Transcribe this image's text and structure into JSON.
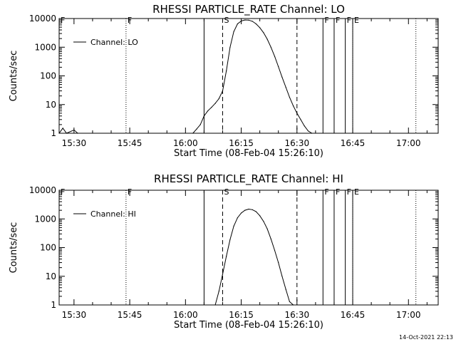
{
  "footer": {
    "timestamp": "14-Oct-2021 22:13"
  },
  "chart_data": [
    {
      "type": "line",
      "title": "RHESSI PARTICLE_RATE Channel: LO",
      "xlabel": "Start Time (08-Feb-04 15:26:10)",
      "ylabel": "Counts/sec",
      "yscale": "log",
      "xlim": [
        "15:26",
        "17:08"
      ],
      "ylim": [
        1,
        10000
      ],
      "xticks": [
        "15:30",
        "15:45",
        "16:00",
        "16:15",
        "16:30",
        "16:45",
        "17:00"
      ],
      "yticks": [
        "1",
        "10",
        "100",
        "1000",
        "10000"
      ],
      "legend": {
        "placement": "top-left",
        "label": "Channel: LO"
      },
      "markers": [
        {
          "time": "15:26",
          "label": "F",
          "style": "dotted"
        },
        {
          "time": "15:44",
          "label": "F",
          "style": "dotted"
        },
        {
          "time": "16:05",
          "label": "",
          "style": "solid"
        },
        {
          "time": "16:10",
          "label": "S",
          "style": "dashed"
        },
        {
          "time": "16:30",
          "label": "",
          "style": "dashed"
        },
        {
          "time": "16:37",
          "label": "F",
          "style": "solid"
        },
        {
          "time": "16:40",
          "label": "F",
          "style": "solid"
        },
        {
          "time": "16:43",
          "label": "F",
          "style": "solid"
        },
        {
          "time": "16:45",
          "label": "E",
          "style": "solid"
        },
        {
          "time": "16:45",
          "label": "",
          "style": "dotted"
        },
        {
          "time": "17:02",
          "label": "",
          "style": "dotted"
        }
      ],
      "series": [
        {
          "name": "Channel: LO",
          "points": [
            [
              "15:26",
              1
            ],
            [
              "15:27",
              1.5
            ],
            [
              "15:28",
              1
            ],
            [
              "15:30",
              1.3
            ],
            [
              "15:31",
              1
            ],
            [
              "16:02",
              1
            ],
            [
              "16:03",
              1.4
            ],
            [
              "16:04",
              2
            ],
            [
              "16:05",
              4
            ],
            [
              "16:06",
              6
            ],
            [
              "16:07",
              8
            ],
            [
              "16:08",
              11
            ],
            [
              "16:09",
              16
            ],
            [
              "16:10",
              30
            ],
            [
              "16:11",
              150
            ],
            [
              "16:12",
              1000
            ],
            [
              "16:13",
              3500
            ],
            [
              "16:14",
              6500
            ],
            [
              "16:15",
              8200
            ],
            [
              "16:16",
              8900
            ],
            [
              "16:17",
              8800
            ],
            [
              "16:18",
              8000
            ],
            [
              "16:19",
              6500
            ],
            [
              "16:20",
              4800
            ],
            [
              "16:21",
              3200
            ],
            [
              "16:22",
              1900
            ],
            [
              "16:23",
              1000
            ],
            [
              "16:24",
              480
            ],
            [
              "16:25",
              210
            ],
            [
              "16:26",
              90
            ],
            [
              "16:27",
              40
            ],
            [
              "16:28",
              18
            ],
            [
              "16:29",
              9
            ],
            [
              "16:30",
              5
            ],
            [
              "16:31",
              3
            ],
            [
              "16:32",
              1.8
            ],
            [
              "16:33",
              1.2
            ],
            [
              "16:34",
              1
            ]
          ]
        }
      ]
    },
    {
      "type": "line",
      "title": "RHESSI PARTICLE_RATE Channel: HI",
      "xlabel": "Start Time (08-Feb-04 15:26:10)",
      "ylabel": "Counts/sec",
      "yscale": "log",
      "xlim": [
        "15:26",
        "17:08"
      ],
      "ylim": [
        1,
        10000
      ],
      "xticks": [
        "15:30",
        "15:45",
        "16:00",
        "16:15",
        "16:30",
        "16:45",
        "17:00"
      ],
      "yticks": [
        "1",
        "10",
        "100",
        "1000",
        "10000"
      ],
      "legend": {
        "placement": "top-left",
        "label": "Channel: HI"
      },
      "markers": [
        {
          "time": "15:26",
          "label": "F",
          "style": "dotted"
        },
        {
          "time": "15:44",
          "label": "F",
          "style": "dotted"
        },
        {
          "time": "16:05",
          "label": "",
          "style": "solid"
        },
        {
          "time": "16:10",
          "label": "S",
          "style": "dashed"
        },
        {
          "time": "16:30",
          "label": "",
          "style": "dashed"
        },
        {
          "time": "16:37",
          "label": "F",
          "style": "solid"
        },
        {
          "time": "16:40",
          "label": "F",
          "style": "solid"
        },
        {
          "time": "16:43",
          "label": "F",
          "style": "solid"
        },
        {
          "time": "16:45",
          "label": "E",
          "style": "solid"
        },
        {
          "time": "16:45",
          "label": "",
          "style": "dotted"
        },
        {
          "time": "17:02",
          "label": "",
          "style": "dotted"
        }
      ],
      "series": [
        {
          "name": "Channel: HI",
          "points": [
            [
              "16:08",
              1
            ],
            [
              "16:09",
              3
            ],
            [
              "16:10",
              12
            ],
            [
              "16:11",
              50
            ],
            [
              "16:12",
              190
            ],
            [
              "16:13",
              560
            ],
            [
              "16:14",
              1100
            ],
            [
              "16:15",
              1600
            ],
            [
              "16:16",
              2000
            ],
            [
              "16:17",
              2200
            ],
            [
              "16:18",
              2100
            ],
            [
              "16:19",
              1800
            ],
            [
              "16:20",
              1300
            ],
            [
              "16:21",
              820
            ],
            [
              "16:22",
              450
            ],
            [
              "16:23",
              200
            ],
            [
              "16:24",
              80
            ],
            [
              "16:25",
              30
            ],
            [
              "16:26",
              10
            ],
            [
              "16:27",
              3.5
            ],
            [
              "16:28",
              1.3
            ],
            [
              "16:29",
              1
            ]
          ]
        }
      ]
    }
  ]
}
